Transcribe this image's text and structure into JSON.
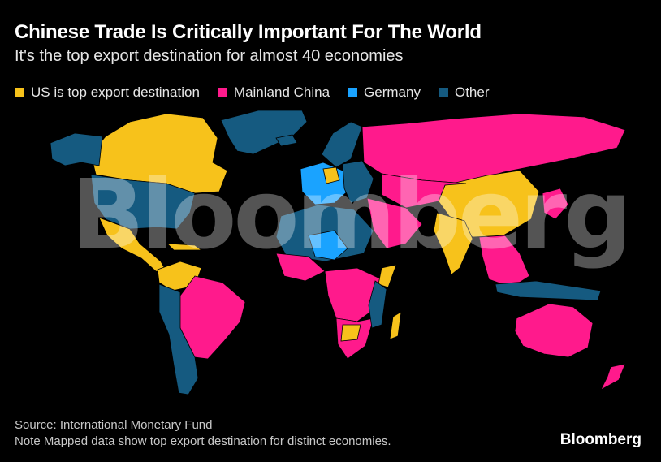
{
  "title": "Chinese Trade Is Critically Important For The World",
  "subtitle": "It's the top export destination for almost 40 economies",
  "legend": [
    {
      "label": "US is top export destination",
      "color": "#f7c21b"
    },
    {
      "label": "Mainland China",
      "color": "#ff1a8c"
    },
    {
      "label": "Germany",
      "color": "#1aa3ff"
    },
    {
      "label": "Other",
      "color": "#155a80"
    }
  ],
  "watermark": "Bloomberg",
  "source": "Source: International Monetary Fund",
  "note": "Note Mapped data show top export destination for distinct economies.",
  "brand": "Bloomberg",
  "colors": {
    "us": "#f7c21b",
    "china": "#ff1a8c",
    "germany": "#1aa3ff",
    "other": "#155a80",
    "background": "#000000"
  }
}
